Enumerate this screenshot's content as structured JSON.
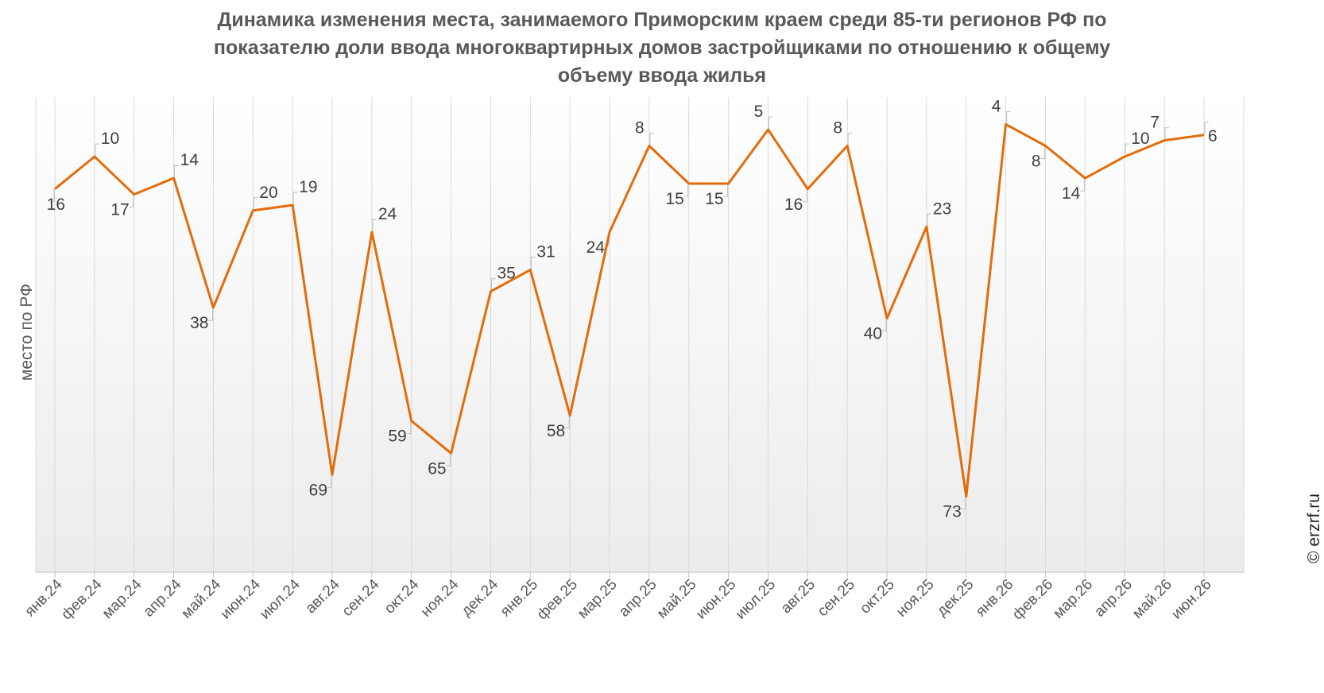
{
  "title_lines": [
    "Динамика изменения места, занимаемого Приморским краем среди 85-ти регионов РФ по",
    "показателю доли ввода многоквартирных домов застройщиками по отношению к общему",
    "объему ввода жилья"
  ],
  "source": "© erzrf.ru",
  "colors": {
    "line": "#E36C0A",
    "grid": "#D9D9D9",
    "text": "#595959"
  },
  "chart_data": {
    "type": "line",
    "title": "Динамика изменения места, занимаемого Приморским краем среди 85-ти регионов РФ по показателю доли ввода многоквартирных домов застройщиками по отношению к общему объему ввода жилья",
    "xlabel": "",
    "ylabel": "место по РФ",
    "y_reversed": true,
    "ylim": [
      1,
      85
    ],
    "grid": "vertical lines at each category",
    "legend": "none",
    "categories": [
      "янв.24",
      "фев.24",
      "мар.24",
      "апр.24",
      "май.24",
      "июн.24",
      "июл.24",
      "авг.24",
      "сен.24",
      "окт.24",
      "ноя.24",
      "дек.24",
      "янв.25",
      "фев.25",
      "мар.25",
      "апр.25",
      "май.25",
      "июн.25",
      "июл.25",
      "авг.25",
      "сен.25",
      "окт.25",
      "ноя.25",
      "дек.25",
      "янв.26",
      "фев.26",
      "мар.26",
      "апр.26",
      "май.26",
      "июн.26"
    ],
    "series": [
      {
        "values": [
          16,
          10,
          17,
          14,
          38,
          20,
          19,
          69,
          24,
          59,
          65,
          35,
          31,
          58,
          24,
          8,
          15,
          15,
          5,
          16,
          8,
          40,
          23,
          73,
          4,
          8,
          14,
          10,
          7,
          6
        ]
      }
    ]
  }
}
